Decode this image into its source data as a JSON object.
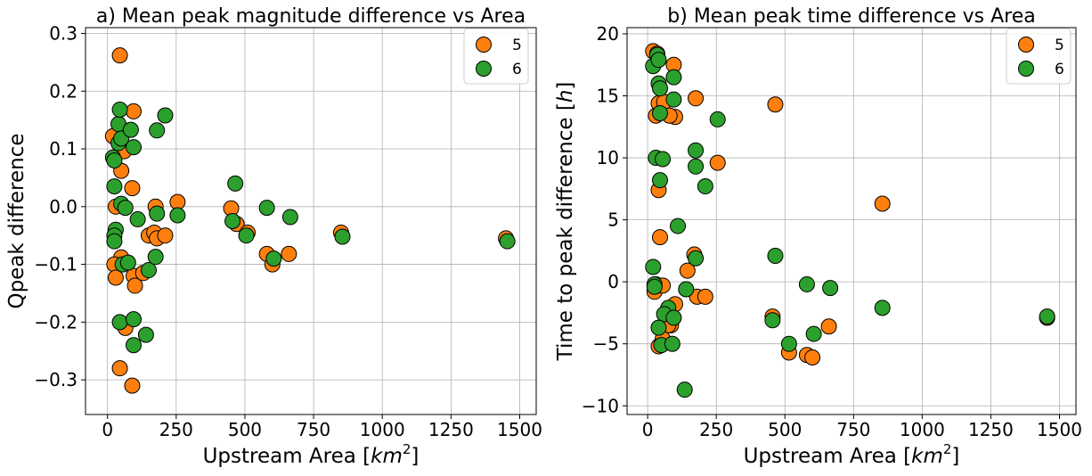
{
  "chart_data": [
    {
      "type": "scatter",
      "title": "a) Mean peak magnitude difference vs Area",
      "xlabel": "Upstream Area [km²]",
      "xlabel_main": "Upstream Area [",
      "xlabel_unit": "km",
      "xlabel_sup": "2",
      "xlabel_end": "]",
      "ylabel": "Qpeak difference",
      "xlim": [
        -80,
        1560
      ],
      "ylim": [
        -0.36,
        0.31
      ],
      "xticks": [
        0,
        250,
        500,
        750,
        1000,
        1250,
        1500
      ],
      "xtick_labels": [
        "0",
        "250",
        "500",
        "750",
        "1000",
        "1250",
        "1500"
      ],
      "yticks": [
        -0.3,
        -0.2,
        -0.1,
        0.0,
        0.1,
        0.2,
        0.3
      ],
      "ytick_labels": [
        "−0.3",
        "−0.2",
        "−0.1",
        "0.0",
        "0.1",
        "0.2",
        "0.3"
      ],
      "grid": true,
      "legend_position": "top-right",
      "series": [
        {
          "name": "5",
          "color": "#ff7f0e",
          "points": [
            [
              20,
              0.122
            ],
            [
              45,
              0.262
            ],
            [
              50,
              0.062
            ],
            [
              45,
              0.107
            ],
            [
              95,
              0.165
            ],
            [
              90,
              0.032
            ],
            [
              60,
              0.096
            ],
            [
              30,
              0.0
            ],
            [
              50,
              -0.088
            ],
            [
              25,
              -0.1
            ],
            [
              30,
              -0.123
            ],
            [
              45,
              -0.28
            ],
            [
              65,
              -0.21
            ],
            [
              90,
              -0.31
            ],
            [
              95,
              -0.12
            ],
            [
              100,
              -0.137
            ],
            [
              130,
              -0.115
            ],
            [
              150,
              -0.05
            ],
            [
              170,
              -0.045
            ],
            [
              180,
              -0.055
            ],
            [
              175,
              0.0
            ],
            [
              210,
              -0.05
            ],
            [
              255,
              0.008
            ],
            [
              450,
              -0.003
            ],
            [
              470,
              -0.03
            ],
            [
              510,
              -0.045
            ],
            [
              580,
              -0.082
            ],
            [
              600,
              -0.1
            ],
            [
              660,
              -0.082
            ],
            [
              850,
              -0.045
            ],
            [
              1450,
              -0.055
            ]
          ]
        },
        {
          "name": "6",
          "color": "#2ca02c",
          "points": [
            [
              20,
              0.085
            ],
            [
              25,
              0.08
            ],
            [
              40,
              0.11
            ],
            [
              40,
              0.143
            ],
            [
              45,
              0.168
            ],
            [
              50,
              0.118
            ],
            [
              85,
              0.133
            ],
            [
              95,
              0.103
            ],
            [
              180,
              0.132
            ],
            [
              210,
              0.158
            ],
            [
              25,
              0.035
            ],
            [
              50,
              0.005
            ],
            [
              65,
              -0.002
            ],
            [
              110,
              -0.022
            ],
            [
              30,
              -0.04
            ],
            [
              25,
              -0.05
            ],
            [
              25,
              -0.06
            ],
            [
              55,
              -0.1
            ],
            [
              75,
              -0.097
            ],
            [
              45,
              -0.2
            ],
            [
              95,
              -0.195
            ],
            [
              95,
              -0.24
            ],
            [
              140,
              -0.222
            ],
            [
              150,
              -0.11
            ],
            [
              175,
              -0.087
            ],
            [
              180,
              -0.012
            ],
            [
              255,
              -0.015
            ],
            [
              455,
              -0.025
            ],
            [
              465,
              0.04
            ],
            [
              505,
              -0.05
            ],
            [
              580,
              -0.002
            ],
            [
              605,
              -0.09
            ],
            [
              665,
              -0.018
            ],
            [
              855,
              -0.052
            ],
            [
              1455,
              -0.06
            ]
          ]
        }
      ]
    },
    {
      "type": "scatter",
      "title": "b) Mean peak time difference vs Area",
      "xlabel": "Upstream Area [km²]",
      "xlabel_main": "Upstream Area [",
      "xlabel_unit": "km",
      "xlabel_sup": "2",
      "xlabel_end": "]",
      "ylabel": "Time to peak difference [h]",
      "ylabel_main": "Time to peak difference [",
      "ylabel_unit": "h",
      "ylabel_end": "]",
      "xlim": [
        -75,
        1560
      ],
      "ylim": [
        -10.7,
        20.5
      ],
      "xticks": [
        0,
        250,
        500,
        750,
        1000,
        1250,
        1500
      ],
      "xtick_labels": [
        "0",
        "250",
        "500",
        "750",
        "1000",
        "1250",
        "1500"
      ],
      "yticks": [
        -10,
        -5,
        0,
        5,
        10,
        15,
        20
      ],
      "ytick_labels": [
        "−10",
        "−5",
        "0",
        "5",
        "10",
        "15",
        "20"
      ],
      "grid": true,
      "legend_position": "top-right",
      "series": [
        {
          "name": "5",
          "color": "#ff7f0e",
          "points": [
            [
              20,
              18.6
            ],
            [
              35,
              18.4
            ],
            [
              95,
              17.5
            ],
            [
              175,
              14.8
            ],
            [
              465,
              14.3
            ],
            [
              30,
              13.4
            ],
            [
              40,
              14.4
            ],
            [
              60,
              14.5
            ],
            [
              100,
              13.3
            ],
            [
              80,
              13.4
            ],
            [
              255,
              9.6
            ],
            [
              855,
              6.3
            ],
            [
              40,
              7.4
            ],
            [
              45,
              3.6
            ],
            [
              170,
              2.2
            ],
            [
              145,
              0.9
            ],
            [
              25,
              -0.8
            ],
            [
              30,
              -0.2
            ],
            [
              55,
              -0.3
            ],
            [
              100,
              -1.8
            ],
            [
              180,
              -1.2
            ],
            [
              210,
              -1.2
            ],
            [
              85,
              -3.5
            ],
            [
              75,
              -3.5
            ],
            [
              55,
              -4.6
            ],
            [
              40,
              -5.2
            ],
            [
              455,
              -2.8
            ],
            [
              515,
              -5.7
            ],
            [
              580,
              -5.9
            ],
            [
              600,
              -6.1
            ],
            [
              660,
              -3.6
            ],
            [
              1455,
              -2.9
            ]
          ]
        },
        {
          "name": "6",
          "color": "#2ca02c",
          "points": [
            [
              20,
              17.4
            ],
            [
              35,
              18.3
            ],
            [
              40,
              17.9
            ],
            [
              40,
              16.0
            ],
            [
              45,
              15.6
            ],
            [
              45,
              13.6
            ],
            [
              95,
              16.5
            ],
            [
              95,
              14.7
            ],
            [
              255,
              13.1
            ],
            [
              30,
              10.0
            ],
            [
              55,
              9.9
            ],
            [
              45,
              8.2
            ],
            [
              175,
              10.6
            ],
            [
              175,
              9.3
            ],
            [
              210,
              7.7
            ],
            [
              110,
              4.5
            ],
            [
              465,
              2.1
            ],
            [
              175,
              1.9
            ],
            [
              20,
              1.2
            ],
            [
              25,
              -0.2
            ],
            [
              25,
              -0.4
            ],
            [
              75,
              -2.1
            ],
            [
              60,
              -2.6
            ],
            [
              95,
              -2.9
            ],
            [
              40,
              -3.7
            ],
            [
              50,
              -5.1
            ],
            [
              90,
              -5.0
            ],
            [
              135,
              -8.7
            ],
            [
              140,
              -0.6
            ],
            [
              455,
              -3.1
            ],
            [
              515,
              -5.0
            ],
            [
              580,
              -0.2
            ],
            [
              605,
              -4.2
            ],
            [
              665,
              -0.5
            ],
            [
              855,
              -2.1
            ],
            [
              1455,
              -2.8
            ]
          ]
        }
      ]
    }
  ]
}
